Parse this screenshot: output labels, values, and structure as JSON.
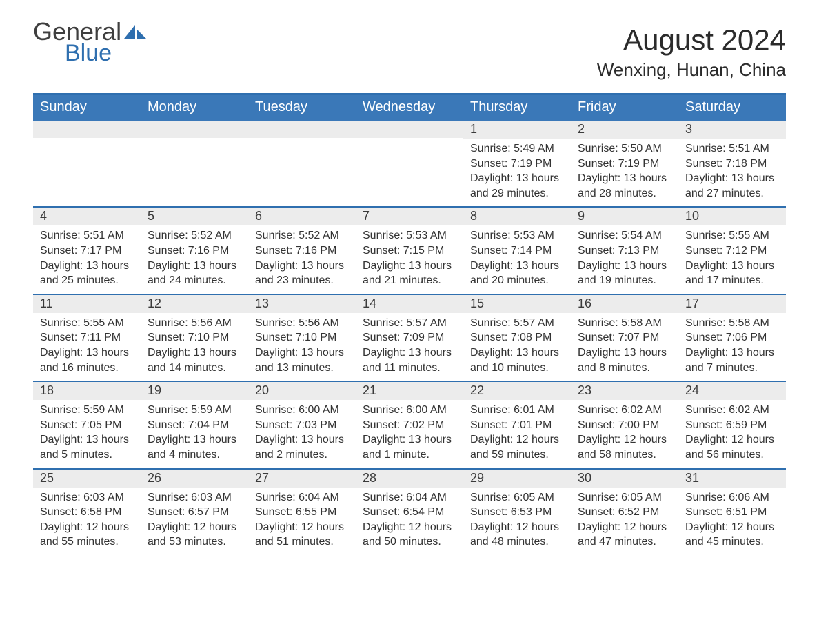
{
  "logo": {
    "text_general": "General",
    "text_blue": "Blue",
    "brand_color": "#3a78b8",
    "text_color": "#3f3f3f"
  },
  "header": {
    "month_title": "August 2024",
    "location": "Wenxing, Hunan, China"
  },
  "colors": {
    "header_bg": "#3a78b8",
    "header_text": "#ffffff",
    "row_divider": "#2f6faf",
    "daynum_bg": "#ececec",
    "body_text": "#333333",
    "page_bg": "#ffffff"
  },
  "typography": {
    "month_title_fontsize": 42,
    "location_fontsize": 26,
    "dayname_fontsize": 20,
    "daynum_fontsize": 18,
    "detail_fontsize": 16
  },
  "calendar": {
    "type": "table",
    "day_names": [
      "Sunday",
      "Monday",
      "Tuesday",
      "Wednesday",
      "Thursday",
      "Friday",
      "Saturday"
    ],
    "weeks": [
      [
        null,
        null,
        null,
        null,
        {
          "num": "1",
          "sunrise": "Sunrise: 5:49 AM",
          "sunset": "Sunset: 7:19 PM",
          "daylight1": "Daylight: 13 hours",
          "daylight2": "and 29 minutes."
        },
        {
          "num": "2",
          "sunrise": "Sunrise: 5:50 AM",
          "sunset": "Sunset: 7:19 PM",
          "daylight1": "Daylight: 13 hours",
          "daylight2": "and 28 minutes."
        },
        {
          "num": "3",
          "sunrise": "Sunrise: 5:51 AM",
          "sunset": "Sunset: 7:18 PM",
          "daylight1": "Daylight: 13 hours",
          "daylight2": "and 27 minutes."
        }
      ],
      [
        {
          "num": "4",
          "sunrise": "Sunrise: 5:51 AM",
          "sunset": "Sunset: 7:17 PM",
          "daylight1": "Daylight: 13 hours",
          "daylight2": "and 25 minutes."
        },
        {
          "num": "5",
          "sunrise": "Sunrise: 5:52 AM",
          "sunset": "Sunset: 7:16 PM",
          "daylight1": "Daylight: 13 hours",
          "daylight2": "and 24 minutes."
        },
        {
          "num": "6",
          "sunrise": "Sunrise: 5:52 AM",
          "sunset": "Sunset: 7:16 PM",
          "daylight1": "Daylight: 13 hours",
          "daylight2": "and 23 minutes."
        },
        {
          "num": "7",
          "sunrise": "Sunrise: 5:53 AM",
          "sunset": "Sunset: 7:15 PM",
          "daylight1": "Daylight: 13 hours",
          "daylight2": "and 21 minutes."
        },
        {
          "num": "8",
          "sunrise": "Sunrise: 5:53 AM",
          "sunset": "Sunset: 7:14 PM",
          "daylight1": "Daylight: 13 hours",
          "daylight2": "and 20 minutes."
        },
        {
          "num": "9",
          "sunrise": "Sunrise: 5:54 AM",
          "sunset": "Sunset: 7:13 PM",
          "daylight1": "Daylight: 13 hours",
          "daylight2": "and 19 minutes."
        },
        {
          "num": "10",
          "sunrise": "Sunrise: 5:55 AM",
          "sunset": "Sunset: 7:12 PM",
          "daylight1": "Daylight: 13 hours",
          "daylight2": "and 17 minutes."
        }
      ],
      [
        {
          "num": "11",
          "sunrise": "Sunrise: 5:55 AM",
          "sunset": "Sunset: 7:11 PM",
          "daylight1": "Daylight: 13 hours",
          "daylight2": "and 16 minutes."
        },
        {
          "num": "12",
          "sunrise": "Sunrise: 5:56 AM",
          "sunset": "Sunset: 7:10 PM",
          "daylight1": "Daylight: 13 hours",
          "daylight2": "and 14 minutes."
        },
        {
          "num": "13",
          "sunrise": "Sunrise: 5:56 AM",
          "sunset": "Sunset: 7:10 PM",
          "daylight1": "Daylight: 13 hours",
          "daylight2": "and 13 minutes."
        },
        {
          "num": "14",
          "sunrise": "Sunrise: 5:57 AM",
          "sunset": "Sunset: 7:09 PM",
          "daylight1": "Daylight: 13 hours",
          "daylight2": "and 11 minutes."
        },
        {
          "num": "15",
          "sunrise": "Sunrise: 5:57 AM",
          "sunset": "Sunset: 7:08 PM",
          "daylight1": "Daylight: 13 hours",
          "daylight2": "and 10 minutes."
        },
        {
          "num": "16",
          "sunrise": "Sunrise: 5:58 AM",
          "sunset": "Sunset: 7:07 PM",
          "daylight1": "Daylight: 13 hours",
          "daylight2": "and 8 minutes."
        },
        {
          "num": "17",
          "sunrise": "Sunrise: 5:58 AM",
          "sunset": "Sunset: 7:06 PM",
          "daylight1": "Daylight: 13 hours",
          "daylight2": "and 7 minutes."
        }
      ],
      [
        {
          "num": "18",
          "sunrise": "Sunrise: 5:59 AM",
          "sunset": "Sunset: 7:05 PM",
          "daylight1": "Daylight: 13 hours",
          "daylight2": "and 5 minutes."
        },
        {
          "num": "19",
          "sunrise": "Sunrise: 5:59 AM",
          "sunset": "Sunset: 7:04 PM",
          "daylight1": "Daylight: 13 hours",
          "daylight2": "and 4 minutes."
        },
        {
          "num": "20",
          "sunrise": "Sunrise: 6:00 AM",
          "sunset": "Sunset: 7:03 PM",
          "daylight1": "Daylight: 13 hours",
          "daylight2": "and 2 minutes."
        },
        {
          "num": "21",
          "sunrise": "Sunrise: 6:00 AM",
          "sunset": "Sunset: 7:02 PM",
          "daylight1": "Daylight: 13 hours",
          "daylight2": "and 1 minute."
        },
        {
          "num": "22",
          "sunrise": "Sunrise: 6:01 AM",
          "sunset": "Sunset: 7:01 PM",
          "daylight1": "Daylight: 12 hours",
          "daylight2": "and 59 minutes."
        },
        {
          "num": "23",
          "sunrise": "Sunrise: 6:02 AM",
          "sunset": "Sunset: 7:00 PM",
          "daylight1": "Daylight: 12 hours",
          "daylight2": "and 58 minutes."
        },
        {
          "num": "24",
          "sunrise": "Sunrise: 6:02 AM",
          "sunset": "Sunset: 6:59 PM",
          "daylight1": "Daylight: 12 hours",
          "daylight2": "and 56 minutes."
        }
      ],
      [
        {
          "num": "25",
          "sunrise": "Sunrise: 6:03 AM",
          "sunset": "Sunset: 6:58 PM",
          "daylight1": "Daylight: 12 hours",
          "daylight2": "and 55 minutes."
        },
        {
          "num": "26",
          "sunrise": "Sunrise: 6:03 AM",
          "sunset": "Sunset: 6:57 PM",
          "daylight1": "Daylight: 12 hours",
          "daylight2": "and 53 minutes."
        },
        {
          "num": "27",
          "sunrise": "Sunrise: 6:04 AM",
          "sunset": "Sunset: 6:55 PM",
          "daylight1": "Daylight: 12 hours",
          "daylight2": "and 51 minutes."
        },
        {
          "num": "28",
          "sunrise": "Sunrise: 6:04 AM",
          "sunset": "Sunset: 6:54 PM",
          "daylight1": "Daylight: 12 hours",
          "daylight2": "and 50 minutes."
        },
        {
          "num": "29",
          "sunrise": "Sunrise: 6:05 AM",
          "sunset": "Sunset: 6:53 PM",
          "daylight1": "Daylight: 12 hours",
          "daylight2": "and 48 minutes."
        },
        {
          "num": "30",
          "sunrise": "Sunrise: 6:05 AM",
          "sunset": "Sunset: 6:52 PM",
          "daylight1": "Daylight: 12 hours",
          "daylight2": "and 47 minutes."
        },
        {
          "num": "31",
          "sunrise": "Sunrise: 6:06 AM",
          "sunset": "Sunset: 6:51 PM",
          "daylight1": "Daylight: 12 hours",
          "daylight2": "and 45 minutes."
        }
      ]
    ]
  }
}
